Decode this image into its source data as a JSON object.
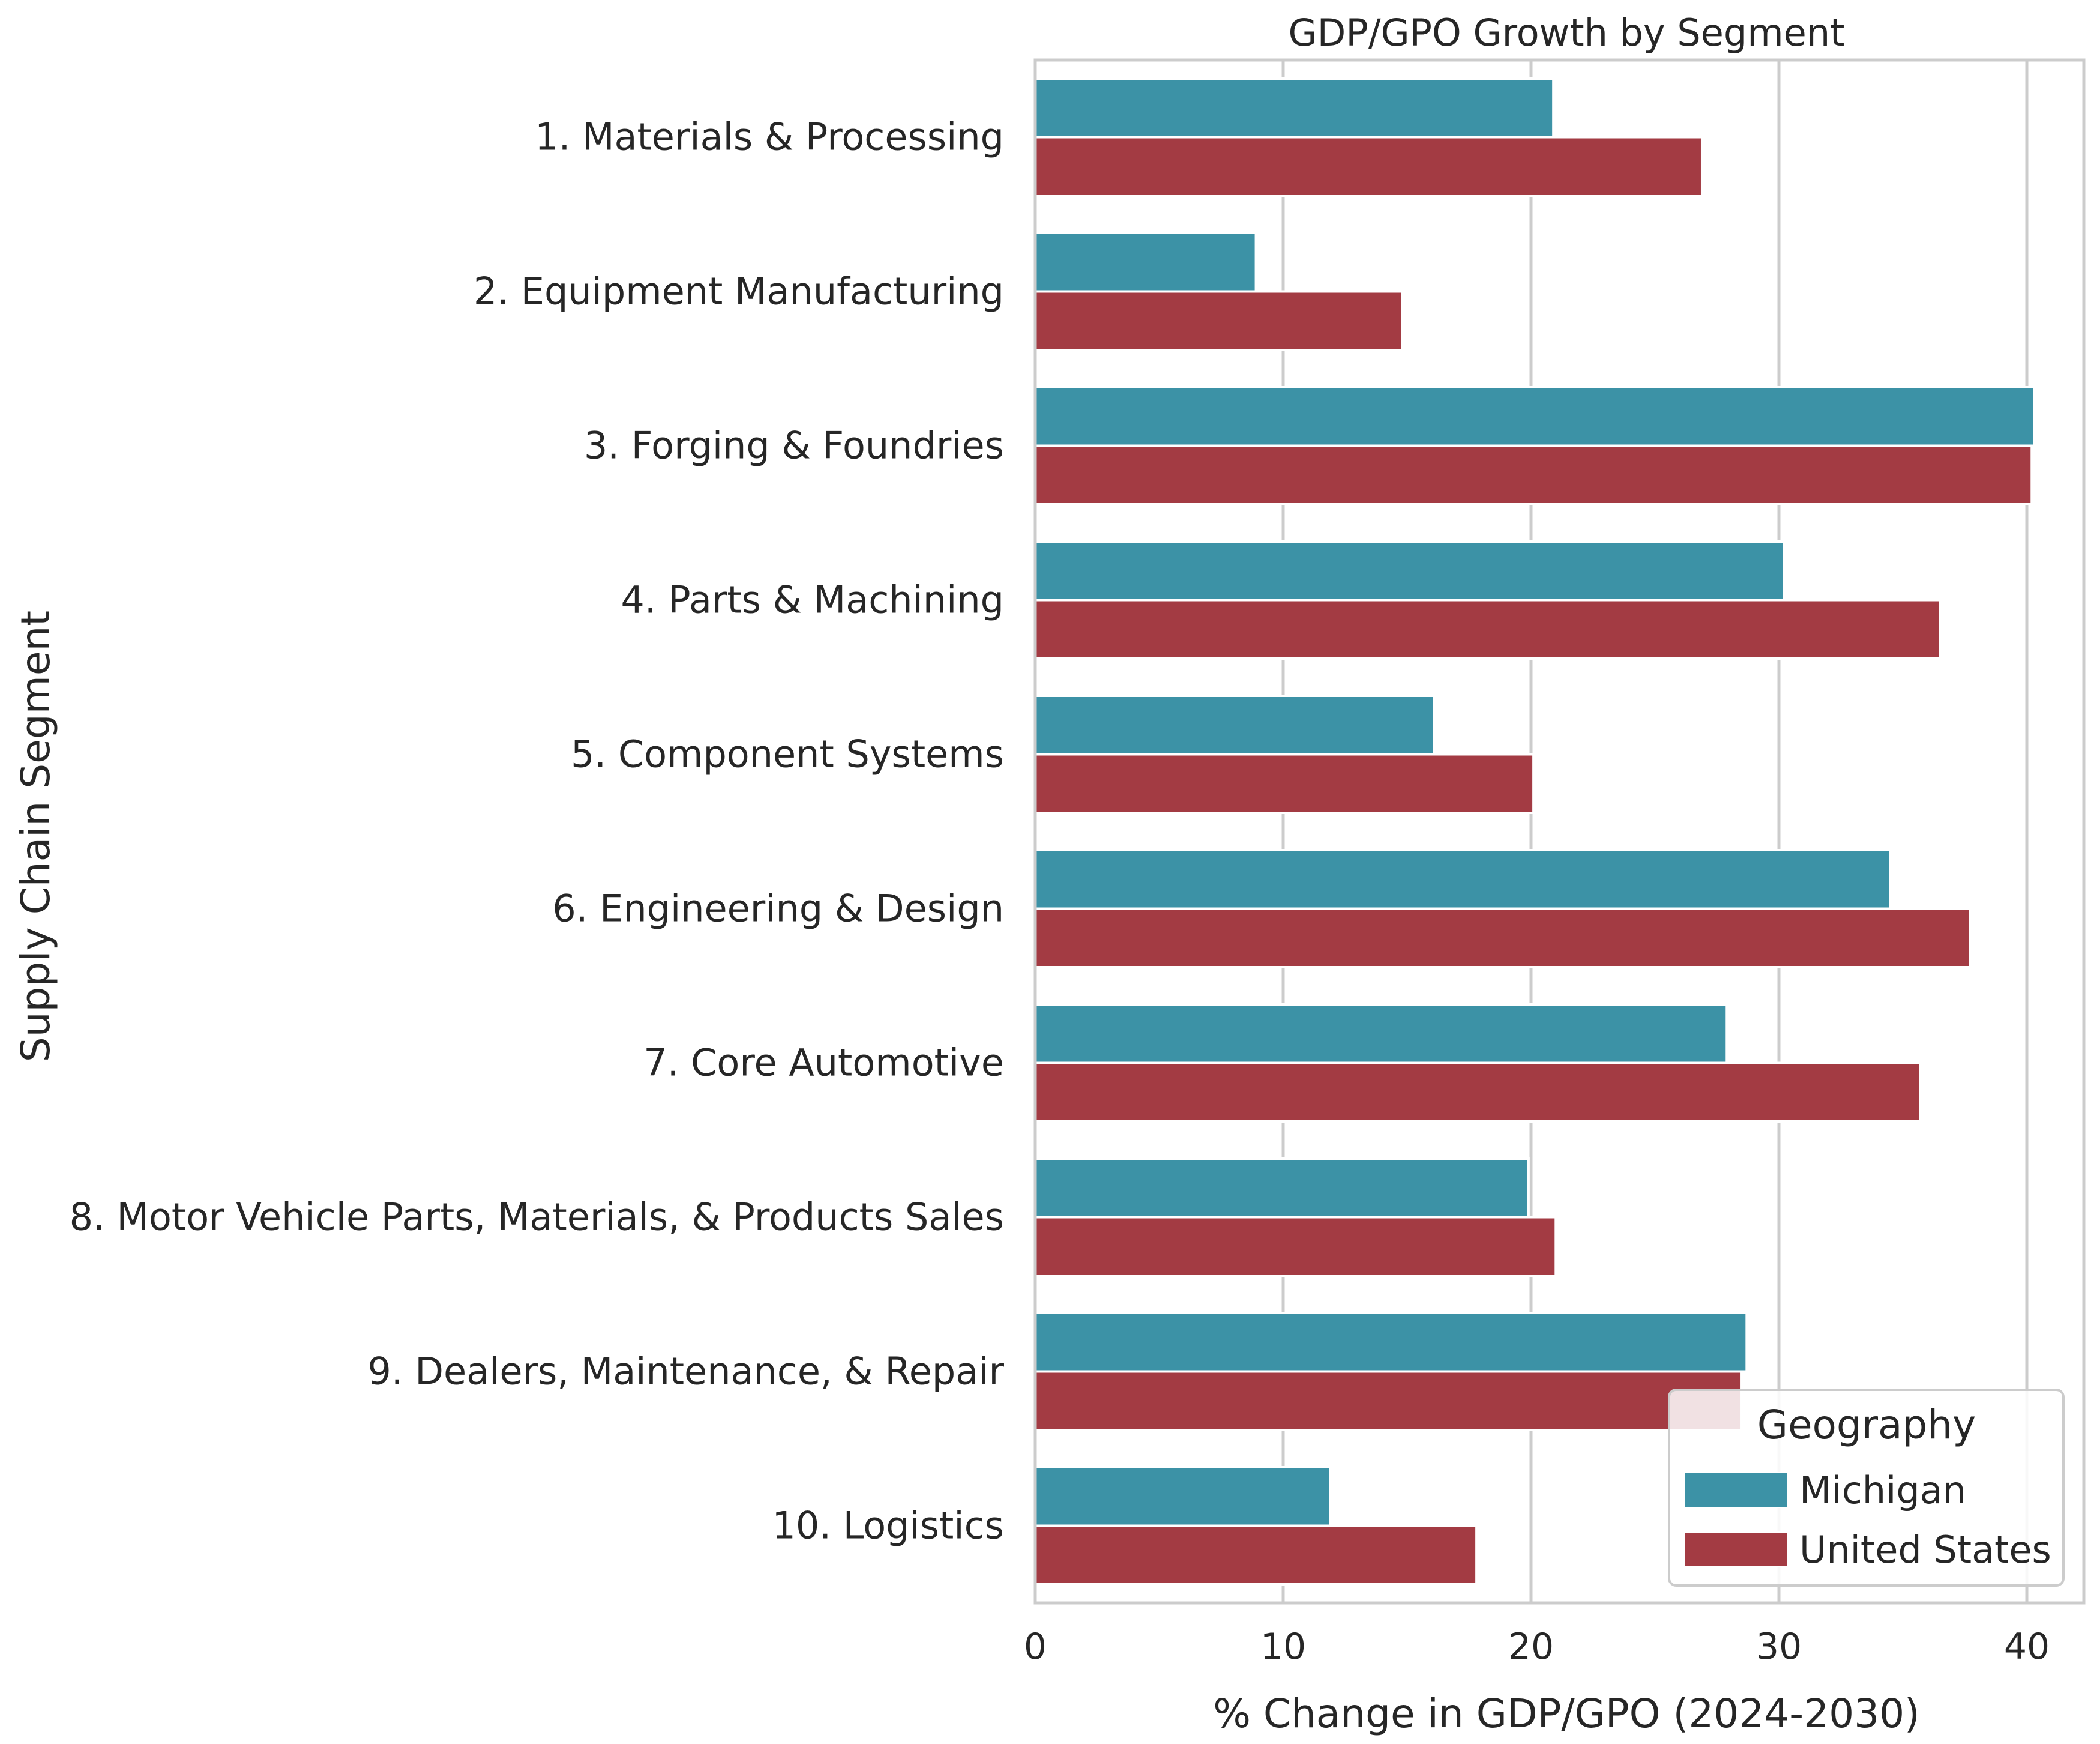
{
  "chart_data": {
    "type": "bar",
    "orientation": "horizontal",
    "title": "GDP/GPO Growth by Segment",
    "xlabel": "% Change in GDP/GPO (2024-2030)",
    "ylabel": "Supply Chain Segment",
    "xlim": [
      0,
      42.3
    ],
    "xticks": [
      0,
      10,
      20,
      30,
      40
    ],
    "grid": "vertical",
    "categories": [
      "1. Materials & Processing",
      "2. Equipment Manufacturing",
      "3. Forging & Foundries",
      "4. Parts & Machining",
      "5. Component Systems",
      "6. Engineering & Design",
      "7. Core Automotive",
      "8. Motor Vehicle Parts, Materials, & Products Sales",
      "9. Dealers, Maintenance, & Repair",
      "10. Logistics"
    ],
    "series": [
      {
        "name": "Michigan",
        "color": "#3c92a6",
        "values": [
          20.9,
          8.9,
          40.3,
          30.2,
          16.1,
          34.5,
          27.9,
          19.9,
          28.7,
          11.9
        ]
      },
      {
        "name": "United States",
        "color": "#a33b43",
        "values": [
          26.9,
          14.8,
          40.2,
          36.5,
          20.1,
          37.7,
          35.7,
          21.0,
          28.5,
          17.8
        ]
      }
    ],
    "legend": {
      "title": "Geography",
      "position": "lower-right"
    }
  }
}
